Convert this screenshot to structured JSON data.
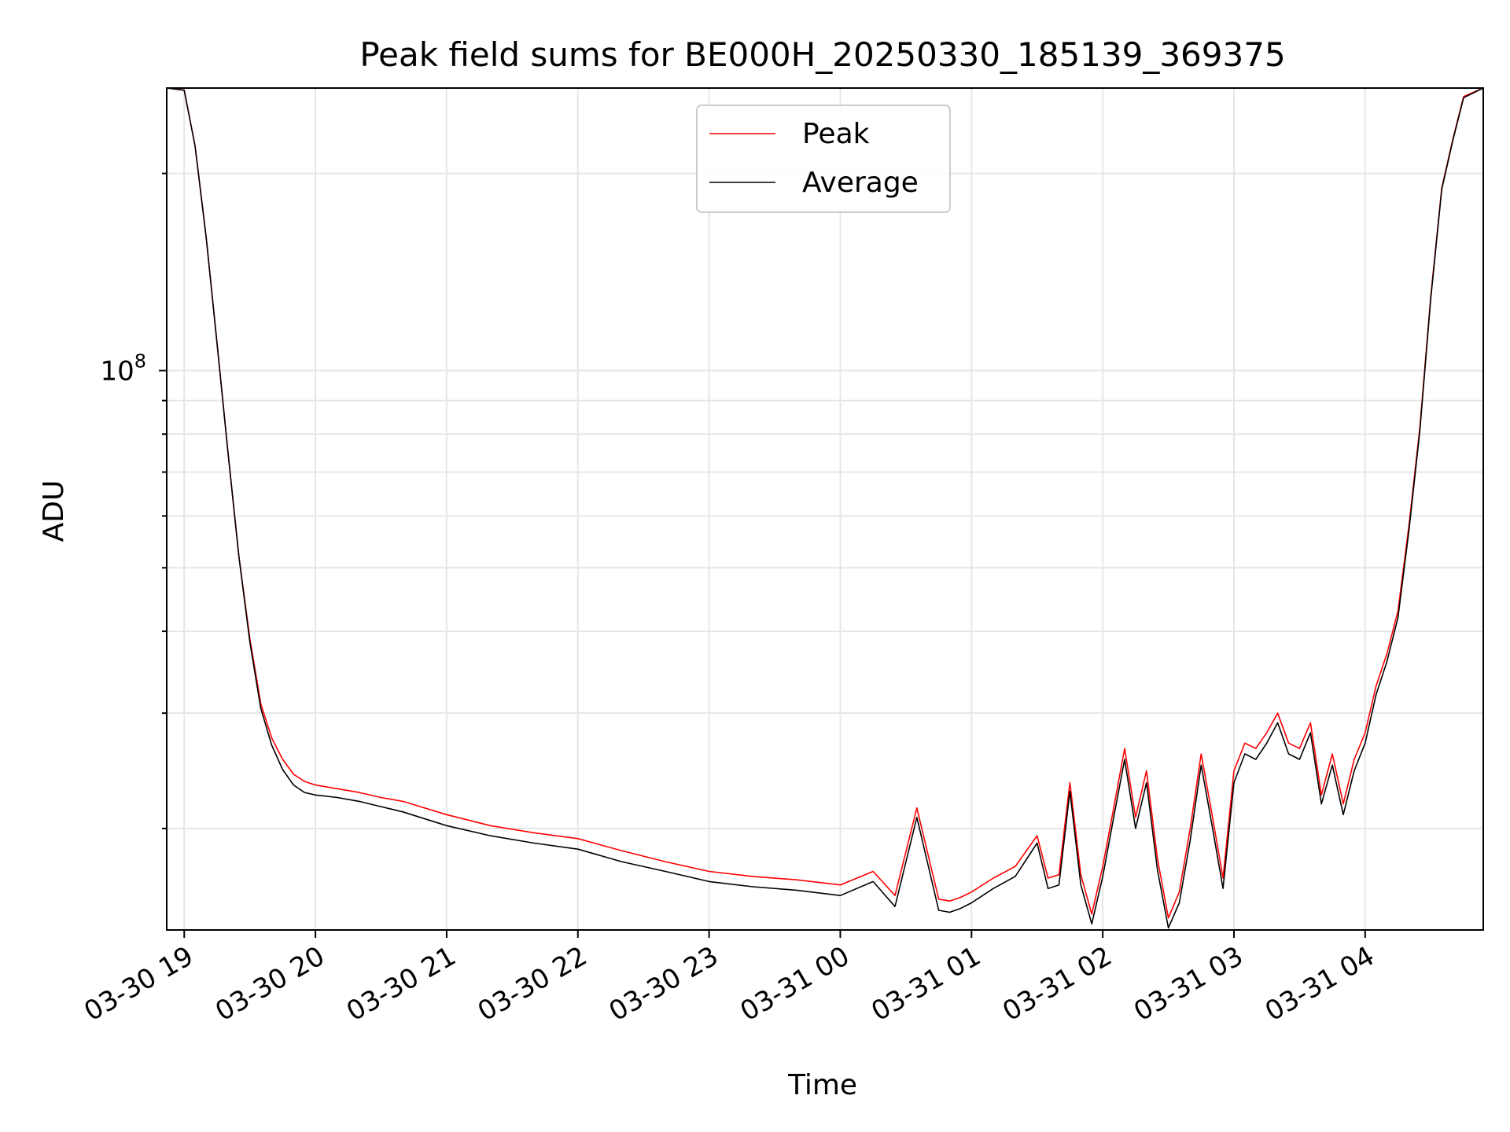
{
  "chart_data": {
    "type": "line",
    "title": "Peak field sums for BE000H_20250330_185139_369375",
    "xlabel": "Time",
    "ylabel": "ADU",
    "yscale": "log",
    "grid": true,
    "legend_placement": "upper-center",
    "xlim": [
      "2025-03-30 18:52",
      "2025-03-31 04:54"
    ],
    "ylim": [
      14000000,
      270000000
    ],
    "x_ticks": [
      {
        "value": "2025-03-30 19:00",
        "label": "03-30 19"
      },
      {
        "value": "2025-03-30 20:00",
        "label": "03-30 20"
      },
      {
        "value": "2025-03-30 21:00",
        "label": "03-30 21"
      },
      {
        "value": "2025-03-30 22:00",
        "label": "03-30 22"
      },
      {
        "value": "2025-03-30 23:00",
        "label": "03-30 23"
      },
      {
        "value": "2025-03-31 00:00",
        "label": "03-31 00"
      },
      {
        "value": "2025-03-31 01:00",
        "label": "03-31 01"
      },
      {
        "value": "2025-03-31 02:00",
        "label": "03-31 02"
      },
      {
        "value": "2025-03-31 03:00",
        "label": "03-31 03"
      },
      {
        "value": "2025-03-31 04:00",
        "label": "03-31 04"
      }
    ],
    "y_ticks": [
      {
        "value": 100000000,
        "label_base": "10",
        "label_exp": "8"
      }
    ],
    "series": [
      {
        "name": "Peak",
        "color": "#ff0000",
        "x": [
          "2025-03-30 18:52",
          "2025-03-30 19:00",
          "2025-03-30 19:05",
          "2025-03-30 19:10",
          "2025-03-30 19:15",
          "2025-03-30 19:20",
          "2025-03-30 19:25",
          "2025-03-30 19:30",
          "2025-03-30 19:35",
          "2025-03-30 19:40",
          "2025-03-30 19:45",
          "2025-03-30 19:50",
          "2025-03-30 19:55",
          "2025-03-30 20:00",
          "2025-03-30 20:10",
          "2025-03-30 20:20",
          "2025-03-30 20:30",
          "2025-03-30 20:40",
          "2025-03-30 21:00",
          "2025-03-30 21:20",
          "2025-03-30 21:40",
          "2025-03-30 22:00",
          "2025-03-30 22:20",
          "2025-03-30 22:40",
          "2025-03-30 23:00",
          "2025-03-30 23:20",
          "2025-03-30 23:40",
          "2025-03-31 00:00",
          "2025-03-31 00:15",
          "2025-03-31 00:25",
          "2025-03-31 00:35",
          "2025-03-31 00:45",
          "2025-03-31 00:50",
          "2025-03-31 00:55",
          "2025-03-31 01:00",
          "2025-03-31 01:10",
          "2025-03-31 01:20",
          "2025-03-31 01:30",
          "2025-03-31 01:35",
          "2025-03-31 01:40",
          "2025-03-31 01:45",
          "2025-03-31 01:50",
          "2025-03-31 01:55",
          "2025-03-31 02:00",
          "2025-03-31 02:05",
          "2025-03-31 02:10",
          "2025-03-31 02:15",
          "2025-03-31 02:20",
          "2025-03-31 02:25",
          "2025-03-31 02:30",
          "2025-03-31 02:35",
          "2025-03-31 02:40",
          "2025-03-31 02:45",
          "2025-03-31 02:50",
          "2025-03-31 02:55",
          "2025-03-31 03:00",
          "2025-03-31 03:05",
          "2025-03-31 03:10",
          "2025-03-31 03:15",
          "2025-03-31 03:20",
          "2025-03-31 03:25",
          "2025-03-31 03:30",
          "2025-03-31 03:35",
          "2025-03-31 03:40",
          "2025-03-31 03:45",
          "2025-03-31 03:50",
          "2025-03-31 03:55",
          "2025-03-31 04:00",
          "2025-03-31 04:05",
          "2025-03-31 04:10",
          "2025-03-31 04:15",
          "2025-03-31 04:20",
          "2025-03-31 04:25",
          "2025-03-31 04:30",
          "2025-03-31 04:35",
          "2025-03-31 04:40",
          "2025-03-31 04:45",
          "2025-03-31 04:54"
        ],
        "values": [
          270000000,
          268000000,
          220000000,
          160000000,
          110000000,
          75000000,
          52000000,
          39000000,
          31000000,
          27500000,
          25500000,
          24200000,
          23600000,
          23300000,
          23000000,
          22700000,
          22300000,
          22000000,
          21000000,
          20200000,
          19700000,
          19300000,
          18500000,
          17800000,
          17200000,
          16900000,
          16700000,
          16400000,
          17200000,
          15800000,
          21500000,
          15600000,
          15500000,
          15700000,
          16000000,
          16800000,
          17500000,
          19500000,
          16800000,
          17000000,
          23500000,
          17000000,
          14800000,
          17500000,
          21500000,
          26500000,
          20800000,
          24500000,
          18000000,
          14600000,
          16000000,
          20000000,
          26000000,
          21000000,
          16800000,
          24500000,
          27000000,
          26500000,
          28000000,
          30000000,
          27000000,
          26500000,
          29000000,
          22500000,
          26000000,
          21800000,
          25500000,
          28000000,
          33000000,
          37000000,
          43000000,
          58000000,
          82000000,
          130000000,
          190000000,
          225000000,
          262000000,
          270000000
        ]
      },
      {
        "name": "Average",
        "color": "#000000",
        "x": [
          "2025-03-30 18:52",
          "2025-03-30 19:00",
          "2025-03-30 19:05",
          "2025-03-30 19:10",
          "2025-03-30 19:15",
          "2025-03-30 19:20",
          "2025-03-30 19:25",
          "2025-03-30 19:30",
          "2025-03-30 19:35",
          "2025-03-30 19:40",
          "2025-03-30 19:45",
          "2025-03-30 19:50",
          "2025-03-30 19:55",
          "2025-03-30 20:00",
          "2025-03-30 20:10",
          "2025-03-30 20:20",
          "2025-03-30 20:30",
          "2025-03-30 20:40",
          "2025-03-30 21:00",
          "2025-03-30 21:20",
          "2025-03-30 21:40",
          "2025-03-30 22:00",
          "2025-03-30 22:20",
          "2025-03-30 22:40",
          "2025-03-30 23:00",
          "2025-03-30 23:20",
          "2025-03-30 23:40",
          "2025-03-31 00:00",
          "2025-03-31 00:15",
          "2025-03-31 00:25",
          "2025-03-31 00:35",
          "2025-03-31 00:45",
          "2025-03-31 00:50",
          "2025-03-31 00:55",
          "2025-03-31 01:00",
          "2025-03-31 01:10",
          "2025-03-31 01:20",
          "2025-03-31 01:30",
          "2025-03-31 01:35",
          "2025-03-31 01:40",
          "2025-03-31 01:45",
          "2025-03-31 01:50",
          "2025-03-31 01:55",
          "2025-03-31 02:00",
          "2025-03-31 02:05",
          "2025-03-31 02:10",
          "2025-03-31 02:15",
          "2025-03-31 02:20",
          "2025-03-31 02:25",
          "2025-03-31 02:30",
          "2025-03-31 02:35",
          "2025-03-31 02:40",
          "2025-03-31 02:45",
          "2025-03-31 02:50",
          "2025-03-31 02:55",
          "2025-03-31 03:00",
          "2025-03-31 03:05",
          "2025-03-31 03:10",
          "2025-03-31 03:15",
          "2025-03-31 03:20",
          "2025-03-31 03:25",
          "2025-03-31 03:30",
          "2025-03-31 03:35",
          "2025-03-31 03:40",
          "2025-03-31 03:45",
          "2025-03-31 03:50",
          "2025-03-31 03:55",
          "2025-03-31 04:00",
          "2025-03-31 04:05",
          "2025-03-31 04:10",
          "2025-03-31 04:15",
          "2025-03-31 04:20",
          "2025-03-31 04:25",
          "2025-03-31 04:30",
          "2025-03-31 04:35",
          "2025-03-31 04:40",
          "2025-03-31 04:45",
          "2025-03-31 04:54"
        ],
        "values": [
          270000000,
          268000000,
          220000000,
          160000000,
          110000000,
          75000000,
          52000000,
          38500000,
          30500000,
          26800000,
          24600000,
          23300000,
          22700000,
          22500000,
          22300000,
          22000000,
          21600000,
          21200000,
          20200000,
          19500000,
          19000000,
          18600000,
          17800000,
          17200000,
          16600000,
          16300000,
          16100000,
          15800000,
          16600000,
          15200000,
          20800000,
          15000000,
          14900000,
          15100000,
          15400000,
          16200000,
          16900000,
          19000000,
          16200000,
          16400000,
          22800000,
          16400000,
          14300000,
          16900000,
          20800000,
          25500000,
          20000000,
          23500000,
          17300000,
          14100000,
          15400000,
          19200000,
          25000000,
          20200000,
          16200000,
          23500000,
          26000000,
          25500000,
          27000000,
          29000000,
          26000000,
          25500000,
          28000000,
          21800000,
          25000000,
          21000000,
          24500000,
          27000000,
          32000000,
          36000000,
          42000000,
          57000000,
          81000000,
          129000000,
          189000000,
          224000000,
          261000000,
          270000000
        ]
      }
    ]
  }
}
